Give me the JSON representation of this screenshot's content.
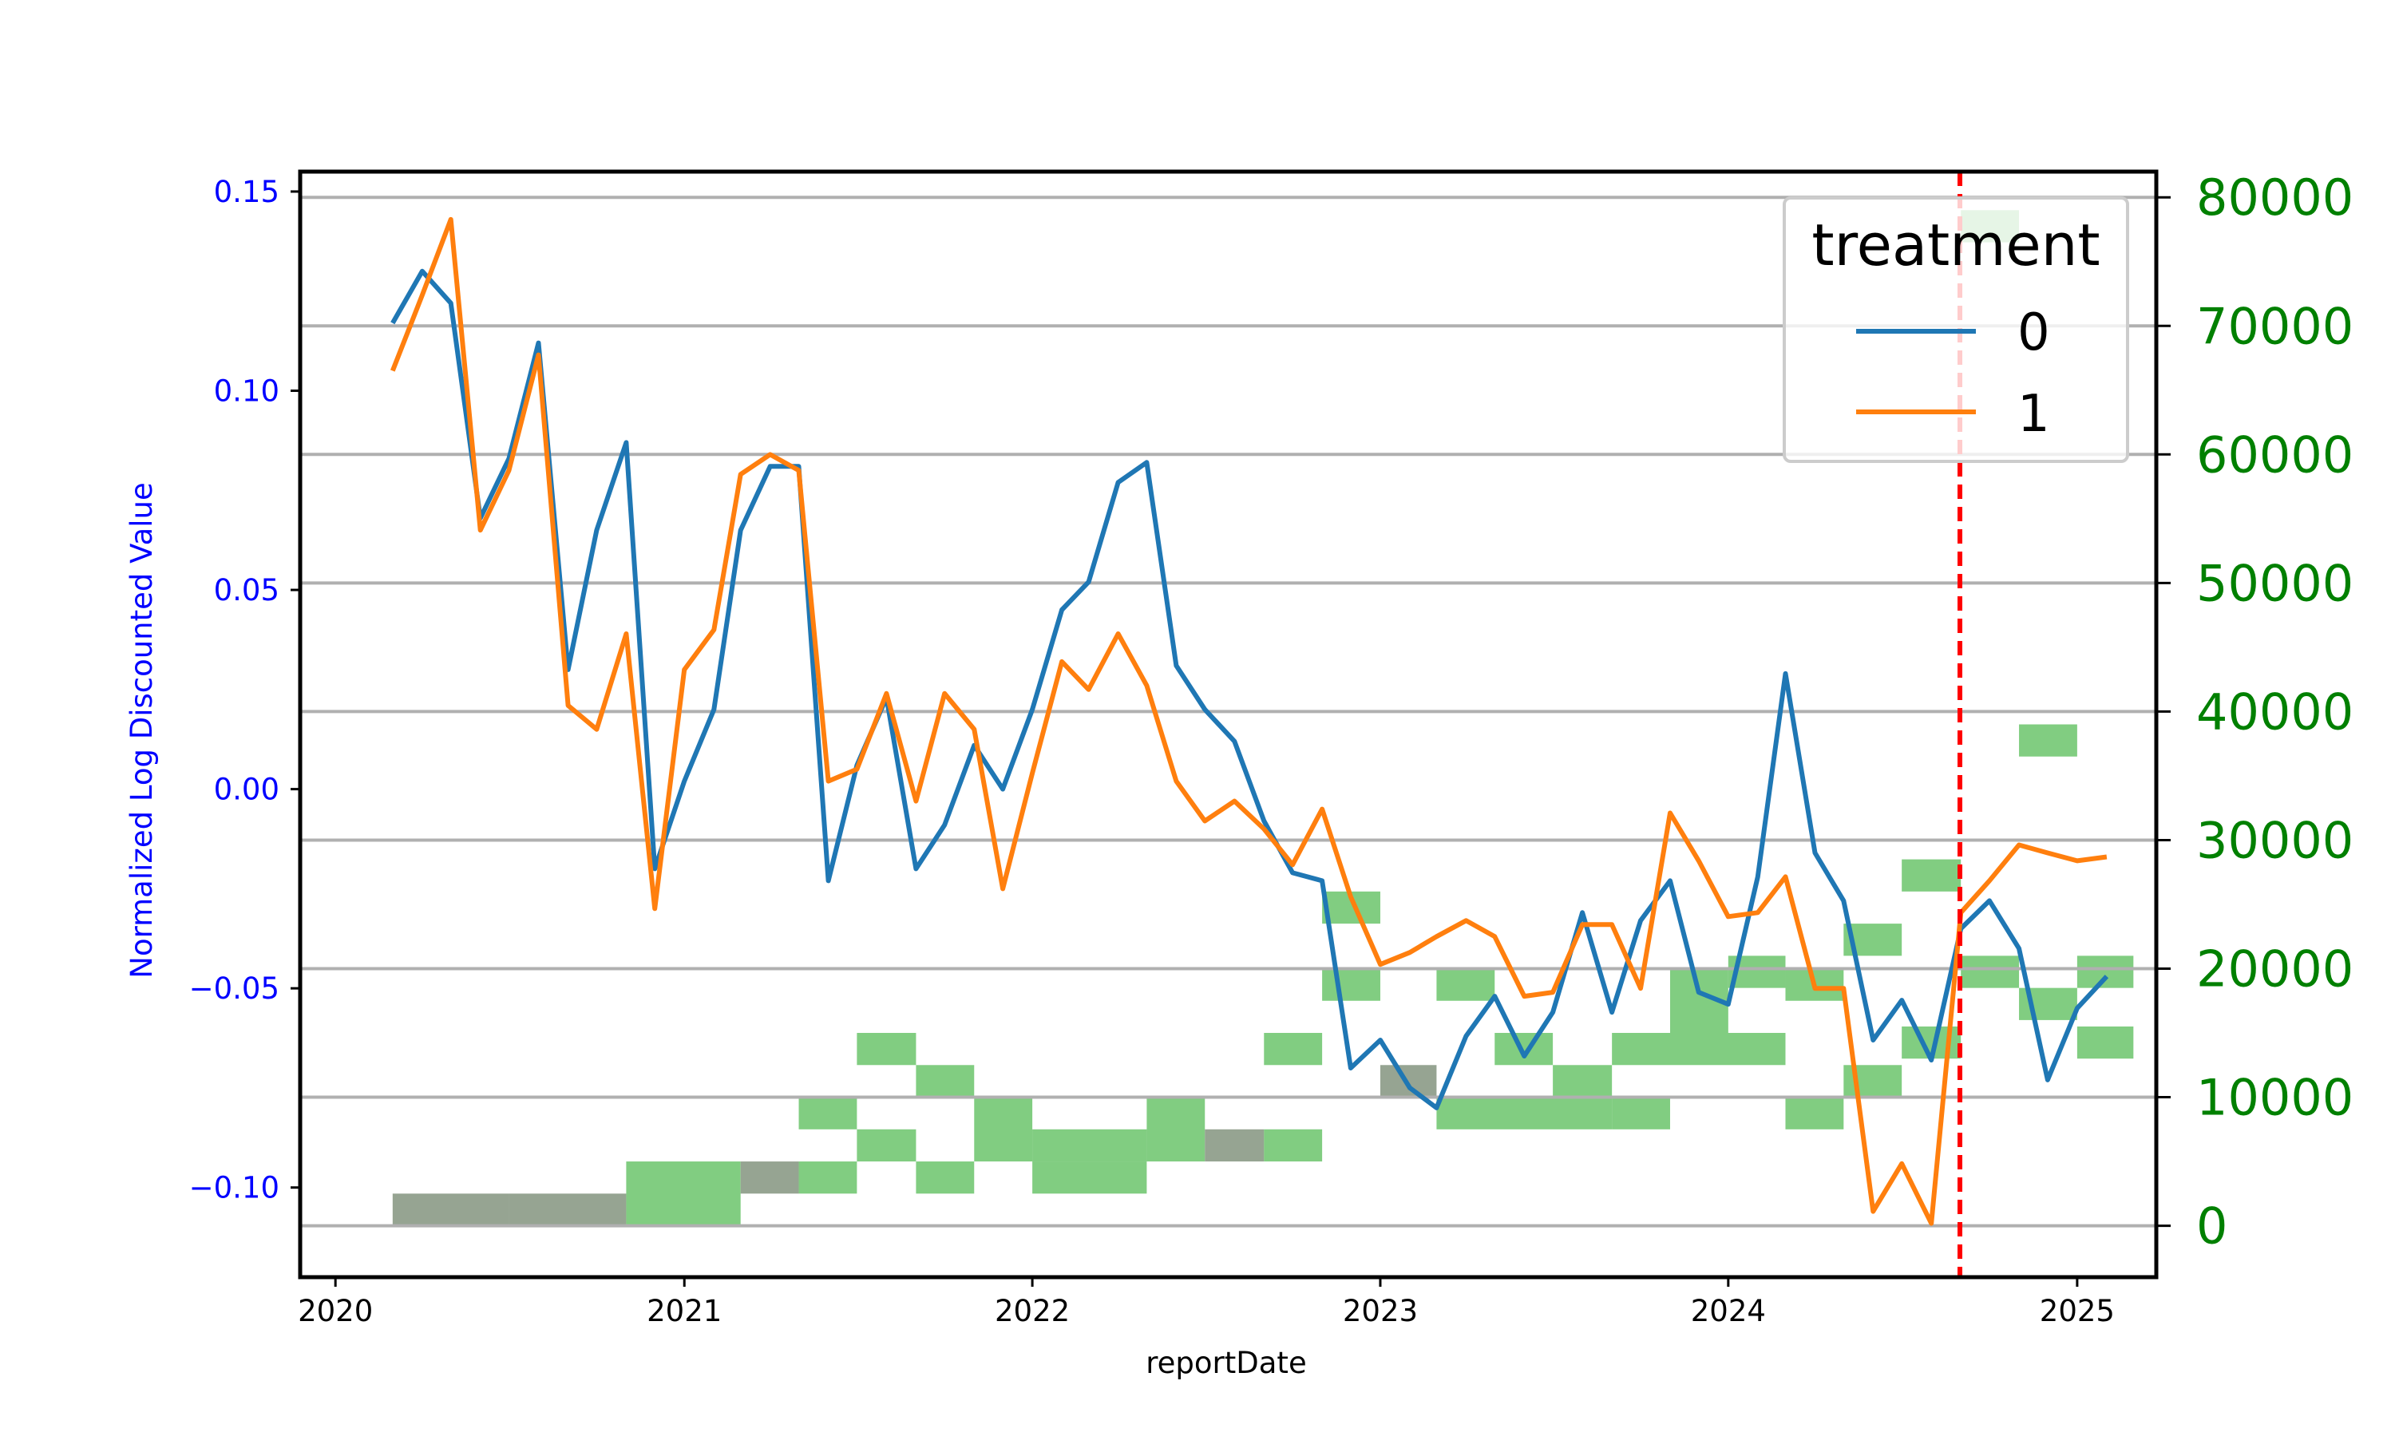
{
  "chart_data": {
    "type": "line",
    "xlabel": "reportDate",
    "ylabel": "Normalized Log Discounted Value",
    "xlim": [
      "2019-11-25",
      "2025-03-25"
    ],
    "ylim": [
      -0.1225,
      0.155
    ],
    "y2lim": [
      -4000,
      82000
    ],
    "x_ticks": [
      "2020",
      "2021",
      "2022",
      "2023",
      "2024",
      "2025"
    ],
    "y_ticks": [
      "0.15",
      "0.10",
      "0.05",
      "0.00",
      "−0.05",
      "−0.10"
    ],
    "y2_ticks": [
      "80000",
      "70000",
      "60000",
      "50000",
      "40000",
      "30000",
      "20000",
      "10000",
      "0"
    ],
    "grid": "horizontal lines on secondary axis",
    "legend": {
      "title": "treatment",
      "placement": "top-right",
      "entries": [
        "0",
        "1"
      ]
    },
    "colors": {
      "series0": "#1f77b4",
      "series1": "#ff7f0e",
      "primary_ticks": "#0000ff",
      "secondary_ticks": "#008000",
      "hist": "#4cb84c",
      "hist_dim": "#909f8c",
      "vline": "#ff0000"
    },
    "vline_date": "2024-08-31",
    "x": [
      "2020-03-01",
      "2020-04-01",
      "2020-05-01",
      "2020-06-01",
      "2020-07-01",
      "2020-08-01",
      "2020-09-01",
      "2020-10-01",
      "2020-11-01",
      "2020-12-01",
      "2021-01-01",
      "2021-02-01",
      "2021-03-01",
      "2021-04-01",
      "2021-05-01",
      "2021-06-01",
      "2021-07-01",
      "2021-08-01",
      "2021-09-01",
      "2021-10-01",
      "2021-11-01",
      "2021-12-01",
      "2022-01-01",
      "2022-02-01",
      "2022-03-01",
      "2022-04-01",
      "2022-05-01",
      "2022-06-01",
      "2022-07-01",
      "2022-08-01",
      "2022-09-01",
      "2022-10-01",
      "2022-11-01",
      "2022-12-01",
      "2023-01-01",
      "2023-02-01",
      "2023-03-01",
      "2023-04-01",
      "2023-05-01",
      "2023-06-01",
      "2023-07-01",
      "2023-08-01",
      "2023-09-01",
      "2023-10-01",
      "2023-11-01",
      "2023-12-01",
      "2024-01-01",
      "2024-02-01",
      "2024-03-01",
      "2024-04-01",
      "2024-05-01",
      "2024-06-01",
      "2024-07-01",
      "2024-08-01",
      "2024-09-01",
      "2024-10-01",
      "2024-11-01",
      "2024-12-01",
      "2025-01-01",
      "2025-02-01"
    ],
    "series": [
      {
        "name": "0",
        "values": [
          0.117,
          0.13,
          0.122,
          0.068,
          0.083,
          0.112,
          0.03,
          0.065,
          0.087,
          -0.02,
          0.002,
          0.02,
          0.065,
          0.081,
          0.081,
          -0.023,
          0.006,
          0.023,
          -0.02,
          -0.009,
          0.011,
          0.0,
          0.02,
          0.045,
          0.052,
          0.077,
          0.082,
          0.031,
          0.02,
          0.012,
          -0.008,
          -0.021,
          -0.023,
          -0.07,
          -0.063,
          -0.075,
          -0.08,
          -0.062,
          -0.052,
          -0.067,
          -0.056,
          -0.031,
          -0.056,
          -0.033,
          -0.023,
          -0.051,
          -0.054,
          -0.022,
          0.029,
          -0.016,
          -0.028,
          -0.063,
          -0.053,
          -0.068,
          -0.035,
          -0.028,
          -0.04,
          -0.073,
          -0.055,
          -0.047
        ]
      },
      {
        "name": "1",
        "values": [
          0.105,
          0.124,
          0.143,
          0.065,
          0.08,
          0.109,
          0.021,
          0.015,
          0.039,
          -0.03,
          0.03,
          0.04,
          0.079,
          0.084,
          0.08,
          0.002,
          0.005,
          0.024,
          -0.003,
          0.024,
          0.015,
          -0.025,
          0.004,
          0.032,
          0.025,
          0.039,
          0.026,
          0.002,
          -0.008,
          -0.003,
          -0.01,
          -0.019,
          -0.005,
          -0.027,
          -0.044,
          -0.041,
          -0.037,
          -0.033,
          -0.037,
          -0.052,
          -0.051,
          -0.034,
          -0.034,
          -0.05,
          -0.006,
          -0.018,
          -0.032,
          -0.031,
          -0.022,
          -0.05,
          -0.05,
          -0.106,
          -0.094,
          -0.109,
          -0.031,
          -0.023,
          -0.014,
          -0.016,
          -0.018,
          -0.017
        ]
      }
    ],
    "histogram_cells": [
      [
        "2020-03-01",
        "2020-07-01",
        0,
        2500,
        "dim"
      ],
      [
        "2020-07-01",
        "2020-11-01",
        0,
        2500,
        "dim"
      ],
      [
        "2020-11-01",
        "2021-03-01",
        0,
        5000,
        "bright"
      ],
      [
        "2021-03-01",
        "2021-05-01",
        2500,
        5000,
        "dim"
      ],
      [
        "2021-05-01",
        "2021-07-01",
        2500,
        5000,
        "bright"
      ],
      [
        "2021-05-01",
        "2021-07-01",
        7500,
        10000,
        "bright"
      ],
      [
        "2021-07-01",
        "2021-09-01",
        5000,
        7500,
        "bright"
      ],
      [
        "2021-07-01",
        "2021-09-01",
        12500,
        15000,
        "bright"
      ],
      [
        "2021-09-01",
        "2021-11-01",
        2500,
        5000,
        "bright"
      ],
      [
        "2021-09-01",
        "2021-11-01",
        10000,
        12500,
        "bright"
      ],
      [
        "2021-11-01",
        "2022-01-01",
        5000,
        10000,
        "bright"
      ],
      [
        "2022-01-01",
        "2022-05-01",
        2500,
        5000,
        "bright"
      ],
      [
        "2022-01-01",
        "2022-05-01",
        5000,
        7500,
        "bright"
      ],
      [
        "2022-05-01",
        "2022-07-01",
        5000,
        10000,
        "bright"
      ],
      [
        "2022-07-01",
        "2022-09-01",
        5000,
        7500,
        "dim"
      ],
      [
        "2022-09-01",
        "2022-11-01",
        5000,
        7500,
        "bright"
      ],
      [
        "2022-09-01",
        "2022-11-01",
        12500,
        15000,
        "bright"
      ],
      [
        "2022-11-01",
        "2023-01-01",
        17500,
        20000,
        "bright"
      ],
      [
        "2022-11-01",
        "2023-01-01",
        23500,
        26000,
        "bright"
      ],
      [
        "2023-01-01",
        "2023-03-01",
        10000,
        12500,
        "dim"
      ],
      [
        "2023-03-01",
        "2023-05-01",
        17500,
        20000,
        "bright"
      ],
      [
        "2023-03-01",
        "2023-09-01",
        7500,
        10000,
        "bright"
      ],
      [
        "2023-05-01",
        "2023-07-01",
        12500,
        15000,
        "bright"
      ],
      [
        "2023-07-01",
        "2023-09-01",
        10000,
        12500,
        "bright"
      ],
      [
        "2023-09-01",
        "2023-11-01",
        7500,
        10000,
        "bright"
      ],
      [
        "2023-09-01",
        "2024-03-01",
        12500,
        15000,
        "bright"
      ],
      [
        "2023-11-01",
        "2024-01-01",
        15000,
        20000,
        "bright"
      ],
      [
        "2024-01-01",
        "2024-03-01",
        18500,
        21000,
        "bright"
      ],
      [
        "2024-03-01",
        "2024-05-01",
        7500,
        10000,
        "bright"
      ],
      [
        "2024-03-01",
        "2024-05-01",
        17500,
        20000,
        "bright"
      ],
      [
        "2024-05-01",
        "2024-07-01",
        10000,
        12500,
        "bright"
      ],
      [
        "2024-05-01",
        "2024-07-01",
        21000,
        23500,
        "bright"
      ],
      [
        "2024-07-01",
        "2024-09-01",
        13000,
        15500,
        "bright"
      ],
      [
        "2024-07-01",
        "2024-09-01",
        26000,
        28500,
        "bright"
      ],
      [
        "2024-09-01",
        "2024-11-01",
        18500,
        21000,
        "bright"
      ],
      [
        "2024-09-01",
        "2024-11-01",
        76500,
        79000,
        "bright"
      ],
      [
        "2024-11-01",
        "2025-01-01",
        16000,
        18500,
        "bright"
      ],
      [
        "2024-11-01",
        "2025-01-01",
        36500,
        39000,
        "bright"
      ],
      [
        "2025-01-01",
        "2025-03-01",
        13000,
        15500,
        "bright"
      ],
      [
        "2025-01-01",
        "2025-03-01",
        18500,
        21000,
        "bright"
      ]
    ]
  }
}
